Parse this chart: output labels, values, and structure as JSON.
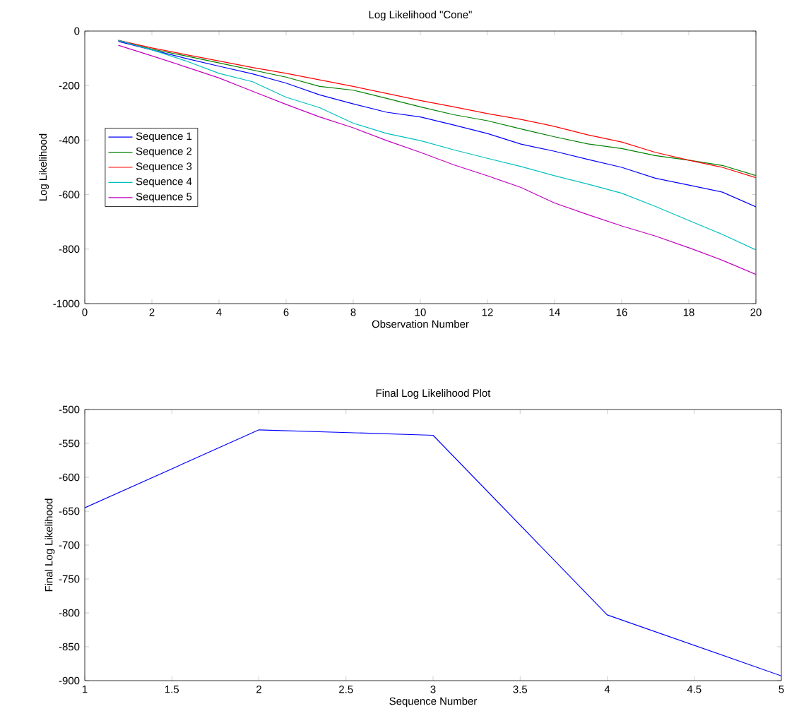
{
  "chart_data": [
    {
      "type": "line",
      "title": "Log Likelihood \"Cone\"",
      "xlabel": "Observation Number",
      "ylabel": "Log Likelihood",
      "x": [
        1,
        2,
        3,
        4,
        5,
        6,
        7,
        8,
        9,
        10,
        11,
        12,
        13,
        14,
        15,
        16,
        17,
        18,
        19,
        20
      ],
      "series": [
        {
          "name": "Sequence 1",
          "color": "#0000ff",
          "values": [
            -38,
            -69,
            -100,
            -129,
            -157,
            -191,
            -234,
            -267,
            -298,
            -315,
            -345,
            -376,
            -415,
            -441,
            -471,
            -500,
            -540,
            -565,
            -591,
            -645
          ]
        },
        {
          "name": "Sequence 2",
          "color": "#008000",
          "values": [
            -34,
            -66,
            -91,
            -117,
            -143,
            -169,
            -203,
            -217,
            -247,
            -278,
            -307,
            -329,
            -359,
            -388,
            -414,
            -431,
            -457,
            -474,
            -493,
            -530
          ]
        },
        {
          "name": "Sequence 3",
          "color": "#ff0000",
          "values": [
            -34,
            -62,
            -86,
            -110,
            -134,
            -155,
            -179,
            -203,
            -229,
            -255,
            -278,
            -303,
            -324,
            -350,
            -381,
            -407,
            -445,
            -474,
            -500,
            -538
          ]
        },
        {
          "name": "Sequence 4",
          "color": "#00bfbf",
          "values": [
            -34,
            -69,
            -109,
            -155,
            -186,
            -243,
            -281,
            -338,
            -376,
            -402,
            -436,
            -467,
            -497,
            -531,
            -562,
            -595,
            -643,
            -695,
            -746,
            -803
          ]
        },
        {
          "name": "Sequence 5",
          "color": "#bf00bf",
          "values": [
            -52,
            -91,
            -131,
            -172,
            -221,
            -269,
            -315,
            -355,
            -402,
            -445,
            -491,
            -531,
            -574,
            -631,
            -674,
            -715,
            -752,
            -795,
            -841,
            -893
          ]
        }
      ],
      "xlim": [
        0,
        20
      ],
      "ylim": [
        -1000,
        0
      ],
      "xticks": [
        0,
        2,
        4,
        6,
        8,
        10,
        12,
        14,
        16,
        18,
        20
      ],
      "yticks": [
        -1000,
        -800,
        -600,
        -400,
        -200,
        0
      ],
      "legend": "left",
      "grid": false
    },
    {
      "type": "line",
      "title": "Final Log Likelihood Plot",
      "xlabel": "Sequence Number",
      "ylabel": "Final Log Likelihood",
      "x": [
        1,
        2,
        3,
        4,
        5
      ],
      "series": [
        {
          "color": "#0000ff",
          "values": [
            -645,
            -530,
            -538,
            -803,
            -893
          ]
        }
      ],
      "xlim": [
        1,
        5
      ],
      "ylim": [
        -900,
        -500
      ],
      "xticks": [
        1,
        1.5,
        2,
        2.5,
        3,
        3.5,
        4,
        4.5,
        5
      ],
      "yticks": [
        -900,
        -850,
        -800,
        -750,
        -700,
        -650,
        -600,
        -550,
        -500
      ],
      "grid": false
    }
  ]
}
